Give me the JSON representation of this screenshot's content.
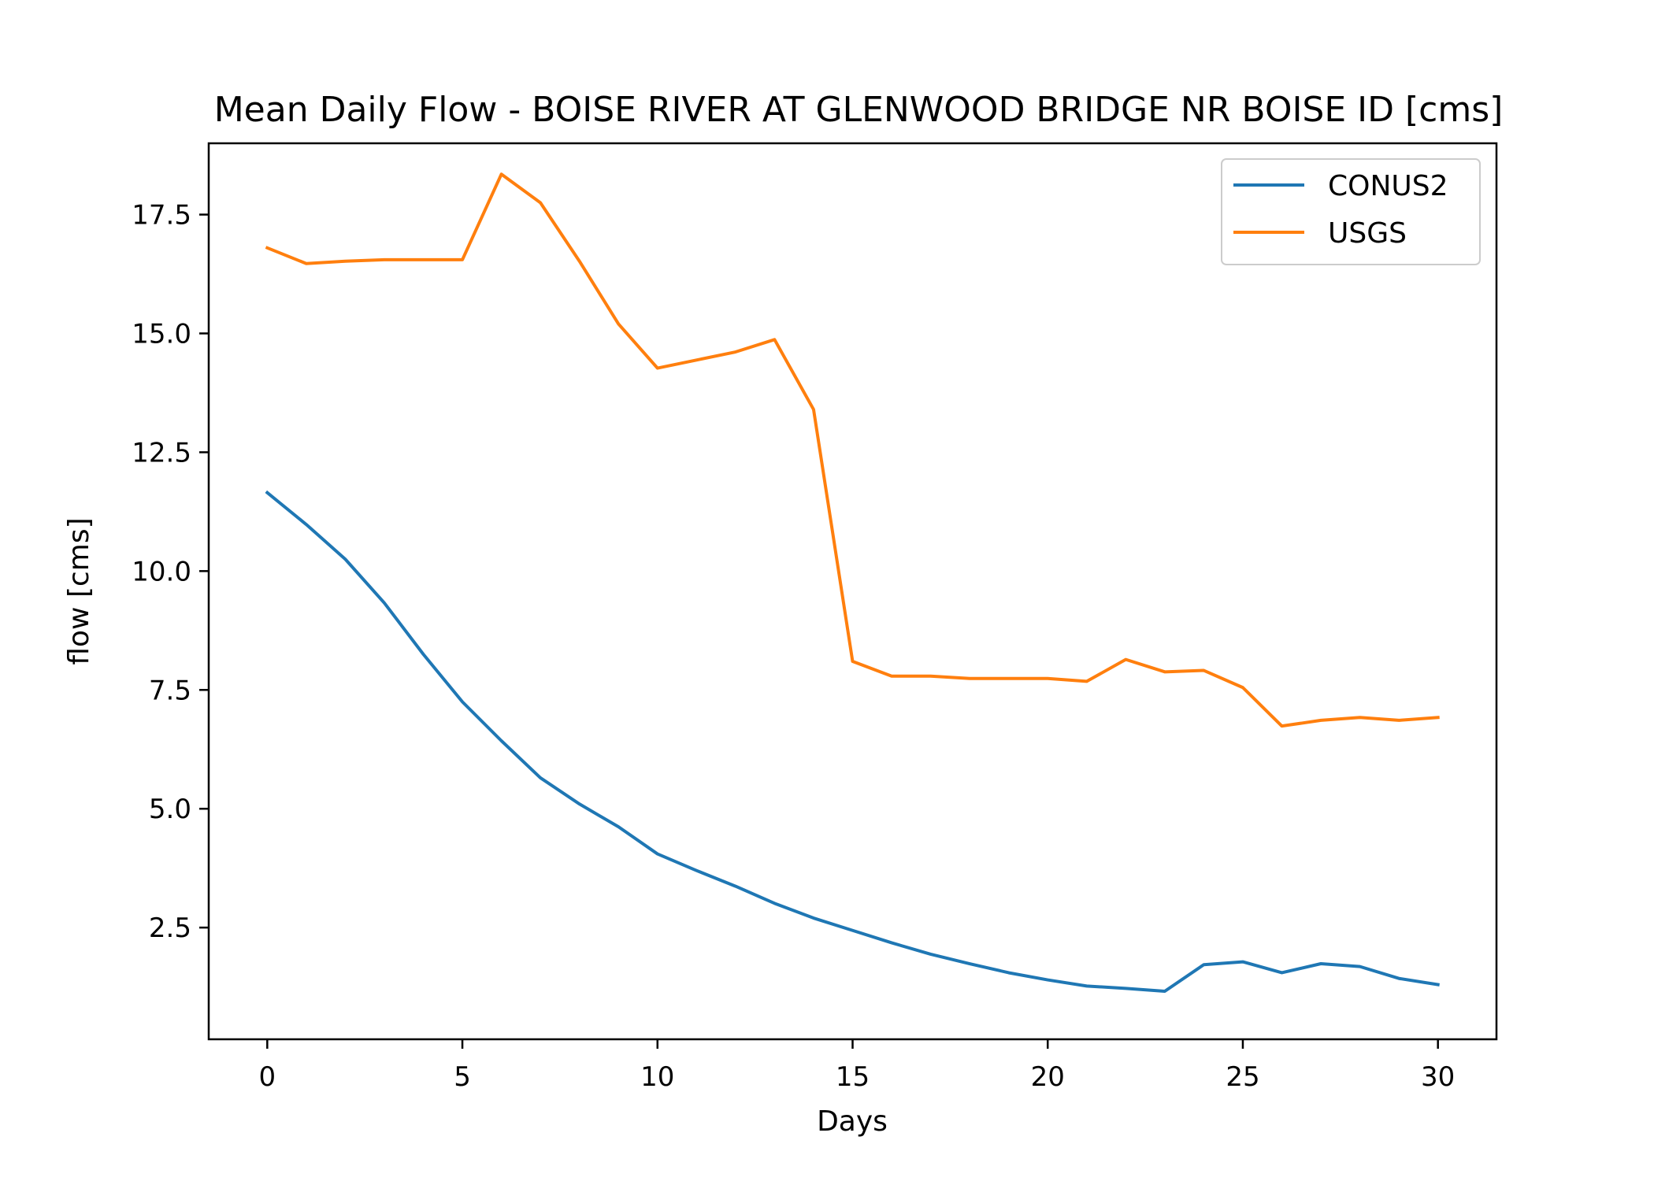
{
  "chart_data": {
    "type": "line",
    "title": "Mean Daily Flow - BOISE RIVER AT GLENWOOD BRIDGE NR BOISE ID [cms]",
    "xlabel": "Days",
    "ylabel": "flow [cms]",
    "xlim": [
      -1.5,
      31.5
    ],
    "ylim": [
      0.15,
      19.0
    ],
    "xticks": [
      0,
      5,
      10,
      15,
      20,
      25,
      30
    ],
    "xtick_labels": [
      "0",
      "5",
      "10",
      "15",
      "20",
      "25",
      "30"
    ],
    "yticks": [
      2.5,
      5.0,
      7.5,
      10.0,
      12.5,
      15.0,
      17.5
    ],
    "ytick_labels": [
      "2.5",
      "5.0",
      "7.5",
      "10.0",
      "12.5",
      "15.0",
      "17.5"
    ],
    "grid": false,
    "legend_position": "upper right",
    "x": [
      0,
      1,
      2,
      3,
      4,
      5,
      6,
      7,
      8,
      9,
      10,
      11,
      12,
      13,
      14,
      15,
      16,
      17,
      18,
      19,
      20,
      21,
      22,
      23,
      24,
      25,
      26,
      27,
      28,
      29,
      30
    ],
    "series": [
      {
        "name": "CONUS2",
        "color": "#1f77b4",
        "values": [
          11.65,
          10.98,
          10.25,
          9.33,
          8.25,
          7.25,
          6.43,
          5.65,
          5.1,
          4.62,
          4.05,
          3.7,
          3.37,
          3.01,
          2.7,
          2.44,
          2.18,
          1.94,
          1.74,
          1.55,
          1.4,
          1.27,
          1.22,
          1.16,
          1.72,
          1.78,
          1.55,
          1.74,
          1.68,
          1.43,
          1.3
        ]
      },
      {
        "name": "USGS",
        "color": "#ff7f0e",
        "values": [
          16.8,
          16.47,
          16.52,
          16.55,
          16.55,
          16.55,
          18.35,
          17.75,
          16.52,
          15.2,
          14.27,
          14.44,
          14.61,
          14.87,
          13.4,
          8.1,
          7.79,
          7.79,
          7.74,
          7.74,
          7.74,
          7.68,
          8.14,
          7.88,
          7.91,
          7.55,
          6.74,
          6.86,
          6.92,
          6.86,
          6.92
        ]
      }
    ]
  }
}
